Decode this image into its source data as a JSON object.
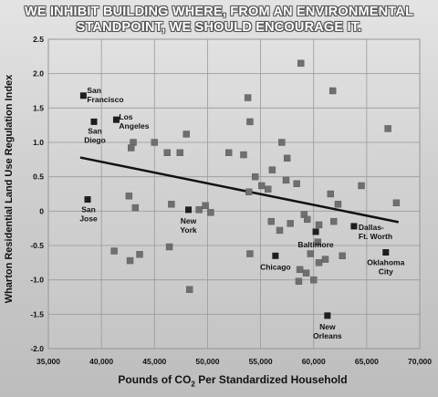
{
  "title": {
    "line1": "WE INHIBIT BUILDING WHERE, FROM AN ENVIRONMENTAL",
    "line2": "STANDPOINT, WE SHOULD ENCOURAGE IT."
  },
  "chart_data": {
    "type": "scatter",
    "title": "WE INHIBIT BUILDING WHERE, FROM AN ENVIRONMENTAL STANDPOINT, WE SHOULD ENCOURAGE IT.",
    "xlabel_pre": "Pounds of CO",
    "xlabel_sub": "2",
    "xlabel_post": " Per Standardized Household",
    "ylabel": "Wharton Residential Land Use Regulation Index",
    "xlim": [
      35000,
      70000
    ],
    "ylim": [
      -2.0,
      2.5
    ],
    "x_ticks": [
      35000,
      40000,
      45000,
      50000,
      55000,
      60000,
      65000,
      70000
    ],
    "x_tick_labels": [
      "35,000",
      "40,000",
      "45,000",
      "50,000",
      "55,000",
      "60,000",
      "65,000",
      "70,000"
    ],
    "y_ticks": [
      -2.0,
      -1.5,
      -1.0,
      -0.5,
      0,
      0.5,
      1.0,
      1.5,
      2.0,
      2.5
    ],
    "y_tick_labels": [
      "-2.0",
      "-1.5",
      "-1.0",
      "-0.5",
      "0",
      "0.5",
      "1.0",
      "1.5",
      "2.0",
      "2.5"
    ],
    "grid": true,
    "trendline": {
      "x": [
        38000,
        68000
      ],
      "y": [
        0.78,
        -0.16
      ]
    },
    "labeled_points": [
      {
        "label": "San Francisco",
        "lines": [
          "San",
          "Francisco"
        ],
        "x": 38300,
        "y": 1.68
      },
      {
        "label": "San Diego",
        "lines": [
          "San",
          "Diego"
        ],
        "x": 39300,
        "y": 1.3
      },
      {
        "label": "Los Angeles",
        "lines": [
          "Los",
          "Angeles"
        ],
        "x": 41400,
        "y": 1.33
      },
      {
        "label": "San Jose",
        "lines": [
          "San",
          "Jose"
        ],
        "x": 38700,
        "y": 0.17
      },
      {
        "label": "New York",
        "lines": [
          "New",
          "York"
        ],
        "x": 48200,
        "y": 0.02
      },
      {
        "label": "Baltimore",
        "lines": [
          "Baltimore"
        ],
        "x": 60200,
        "y": -0.3
      },
      {
        "label": "Dallas-Ft. Worth",
        "lines": [
          "Dallas-",
          "Ft. Worth"
        ],
        "x": 63800,
        "y": -0.22
      },
      {
        "label": "Chicago",
        "lines": [
          "Chicago"
        ],
        "x": 56400,
        "y": -0.65
      },
      {
        "label": "Oklahoma City",
        "lines": [
          "Oklahoma",
          "City"
        ],
        "x": 66800,
        "y": -0.6
      },
      {
        "label": "New Orleans",
        "lines": [
          "New",
          "Orleans"
        ],
        "x": 61300,
        "y": -1.52
      }
    ],
    "other_points": [
      {
        "x": 58800,
        "y": 2.15
      },
      {
        "x": 61800,
        "y": 1.75
      },
      {
        "x": 53800,
        "y": 1.65
      },
      {
        "x": 54000,
        "y": 1.3
      },
      {
        "x": 67000,
        "y": 1.2
      },
      {
        "x": 48000,
        "y": 1.12
      },
      {
        "x": 43000,
        "y": 1.0
      },
      {
        "x": 45000,
        "y": 1.0
      },
      {
        "x": 42800,
        "y": 0.92
      },
      {
        "x": 46200,
        "y": 0.85
      },
      {
        "x": 47400,
        "y": 0.85
      },
      {
        "x": 52000,
        "y": 0.85
      },
      {
        "x": 53400,
        "y": 0.82
      },
      {
        "x": 57000,
        "y": 1.0
      },
      {
        "x": 57500,
        "y": 0.77
      },
      {
        "x": 56100,
        "y": 0.6
      },
      {
        "x": 54500,
        "y": 0.5
      },
      {
        "x": 57400,
        "y": 0.45
      },
      {
        "x": 55100,
        "y": 0.37
      },
      {
        "x": 55700,
        "y": 0.32
      },
      {
        "x": 53900,
        "y": 0.28
      },
      {
        "x": 58400,
        "y": 0.4
      },
      {
        "x": 64500,
        "y": 0.37
      },
      {
        "x": 61600,
        "y": 0.25
      },
      {
        "x": 62300,
        "y": 0.1
      },
      {
        "x": 67800,
        "y": 0.12
      },
      {
        "x": 42600,
        "y": 0.22
      },
      {
        "x": 43200,
        "y": 0.05
      },
      {
        "x": 46600,
        "y": 0.1
      },
      {
        "x": 49200,
        "y": 0.02
      },
      {
        "x": 49800,
        "y": 0.08
      },
      {
        "x": 50300,
        "y": -0.02
      },
      {
        "x": 56000,
        "y": -0.15
      },
      {
        "x": 56800,
        "y": -0.28
      },
      {
        "x": 57800,
        "y": -0.18
      },
      {
        "x": 59100,
        "y": -0.05
      },
      {
        "x": 59400,
        "y": -0.12
      },
      {
        "x": 60500,
        "y": -0.2
      },
      {
        "x": 61900,
        "y": -0.15
      },
      {
        "x": 60400,
        "y": -0.45
      },
      {
        "x": 59700,
        "y": -0.62
      },
      {
        "x": 62700,
        "y": -0.65
      },
      {
        "x": 58700,
        "y": -0.85
      },
      {
        "x": 59300,
        "y": -0.9
      },
      {
        "x": 58600,
        "y": -1.02
      },
      {
        "x": 60000,
        "y": -1.0
      },
      {
        "x": 60500,
        "y": -0.75
      },
      {
        "x": 61100,
        "y": -0.7
      },
      {
        "x": 54000,
        "y": -0.62
      },
      {
        "x": 46400,
        "y": -0.52
      },
      {
        "x": 41200,
        "y": -0.58
      },
      {
        "x": 42700,
        "y": -0.72
      },
      {
        "x": 43600,
        "y": -0.63
      },
      {
        "x": 48300,
        "y": -1.14
      }
    ]
  }
}
